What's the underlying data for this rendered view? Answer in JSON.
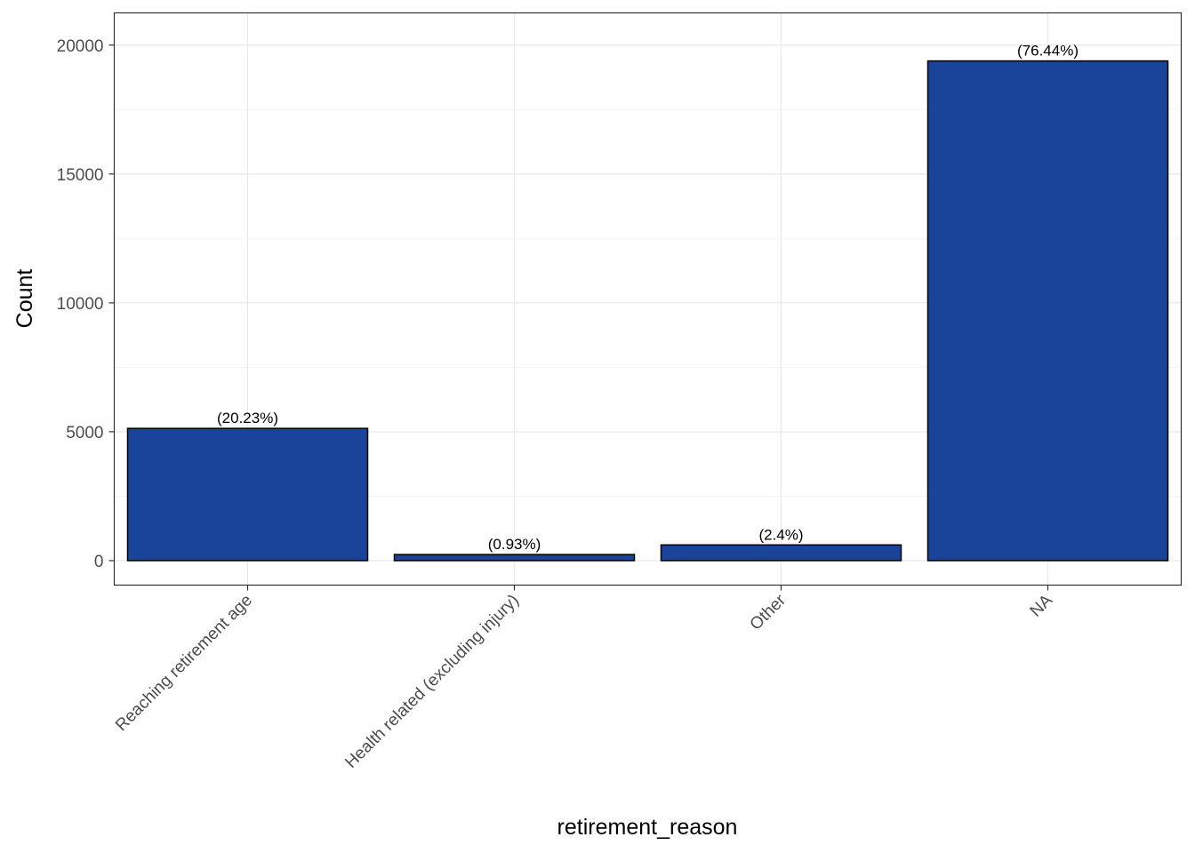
{
  "chart_data": {
    "type": "bar",
    "categories": [
      "Reaching retirement age",
      "Health related (excluding injury)",
      "Other",
      "NA"
    ],
    "values": [
      5130,
      236,
      609,
      19385
    ],
    "data_labels": [
      "(20.23%)",
      "(0.93%)",
      "(2.4%)",
      "(76.44%)"
    ],
    "title": "",
    "xlabel": "retirement_reason",
    "ylabel": "Count",
    "ylim": [
      -950,
      21250
    ],
    "yticks": [
      0,
      5000,
      10000,
      15000,
      20000
    ],
    "ytick_labels": [
      "0",
      "5000",
      "10000",
      "15000",
      "20000"
    ],
    "grid": true,
    "colors": {
      "bar_fill": "#1a4499",
      "bar_stroke": "#000000",
      "grid_major": "#ebebeb",
      "grid_minor": "#f5f5f5",
      "panel_border": "#333333",
      "tick_text": "#4d4d4d"
    }
  }
}
